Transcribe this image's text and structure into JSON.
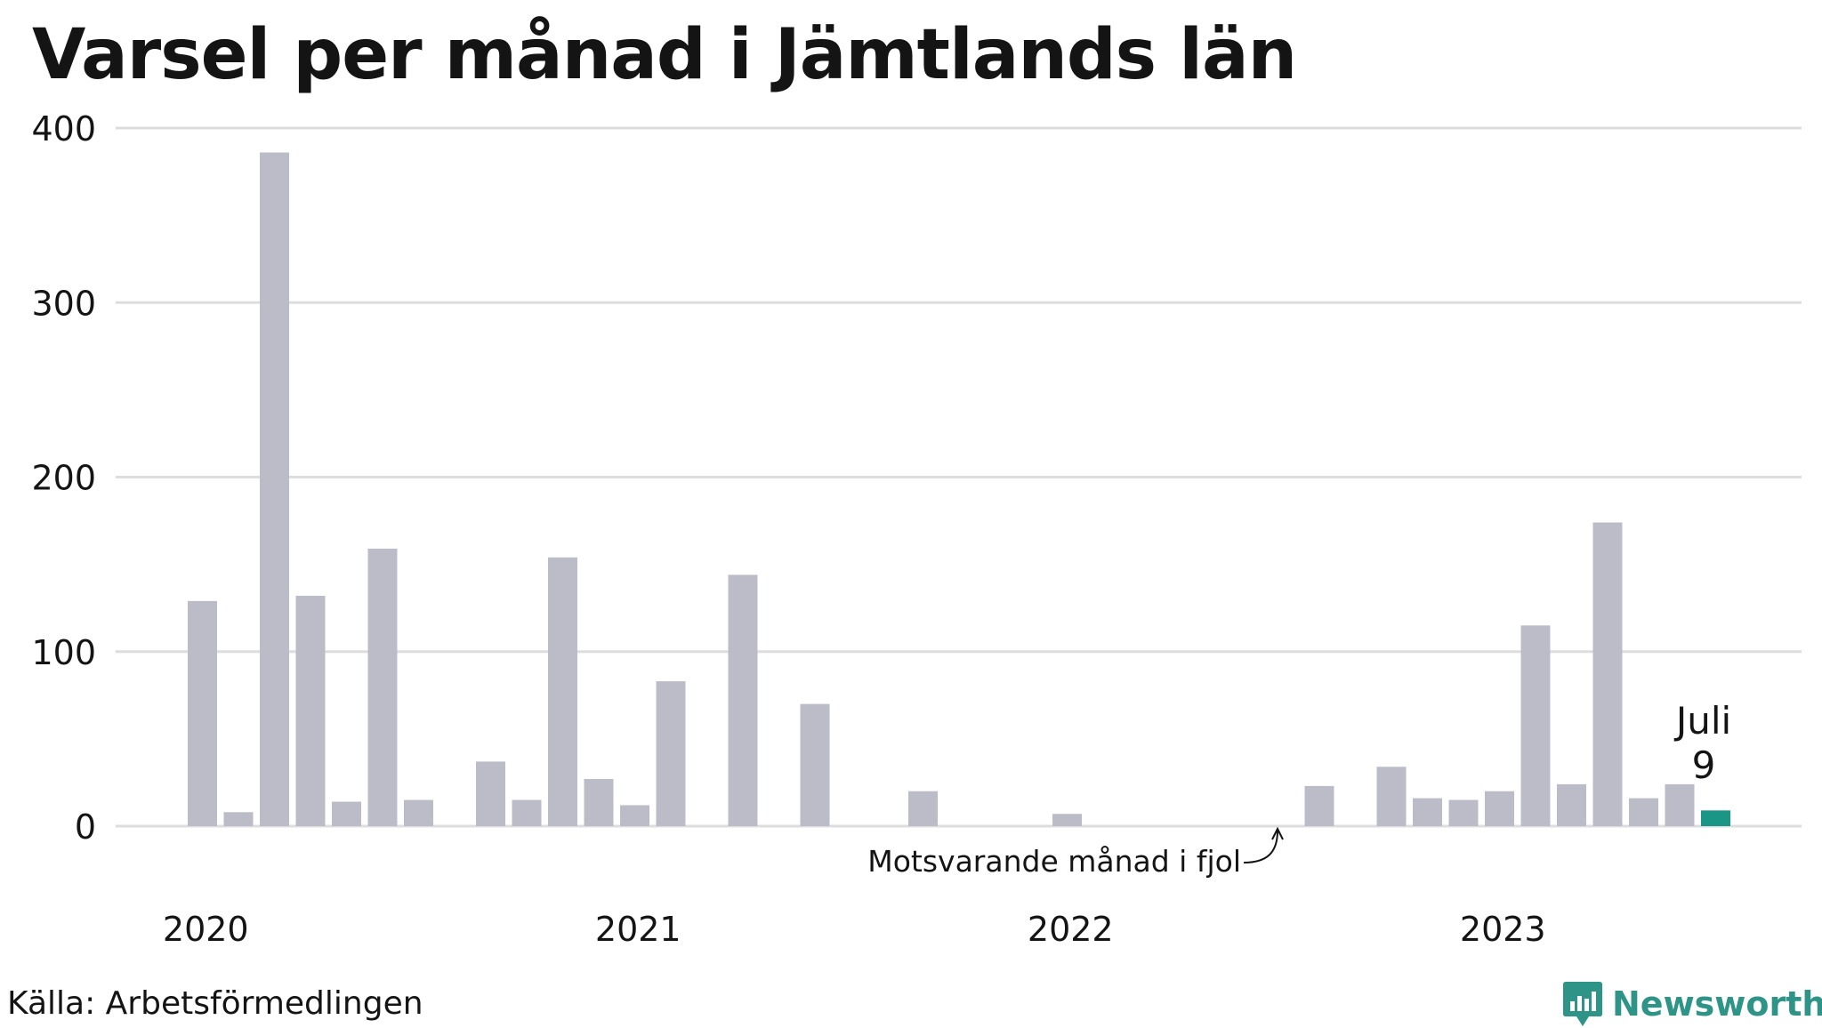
{
  "title": "Varsel per månad i Jämtlands län",
  "source": "Källa: Arbetsförmedlingen",
  "brand": {
    "name": "Newsworthy",
    "icon": "newsworthy-logo-icon",
    "color": "#2e9487"
  },
  "colors": {
    "bar": "#bcbbc8",
    "same_month_last_year": "#444444",
    "current": "#1b9585",
    "grid": "#dddddd",
    "text": "#141414"
  },
  "chart_data": {
    "type": "bar",
    "title": "Varsel per månad i Jämtlands län",
    "x_start": "2020-01",
    "x_end": "2023-07",
    "year_ticks": [
      "2020",
      "2021",
      "2022",
      "2023"
    ],
    "y_ticks": [
      0,
      100,
      200,
      300,
      400
    ],
    "ylim": [
      0,
      400
    ],
    "grid": true,
    "series": [
      {
        "values": [
          129,
          8,
          386,
          132,
          14,
          159,
          15,
          0,
          37,
          15,
          154,
          27,
          12,
          83,
          0,
          144,
          0,
          70,
          0,
          0,
          20,
          0,
          0,
          0,
          7,
          0,
          0,
          0,
          0,
          0,
          0,
          23,
          0,
          34,
          16,
          15,
          20,
          115,
          24,
          174,
          16,
          24,
          9
        ]
      }
    ],
    "highlights": {
      "same_month_last_year": "2022-07",
      "current": "2023-07"
    },
    "annotations": {
      "last_year": "Motsvarande månad i fjol",
      "current_month": "Juli",
      "current_value": "9"
    }
  }
}
